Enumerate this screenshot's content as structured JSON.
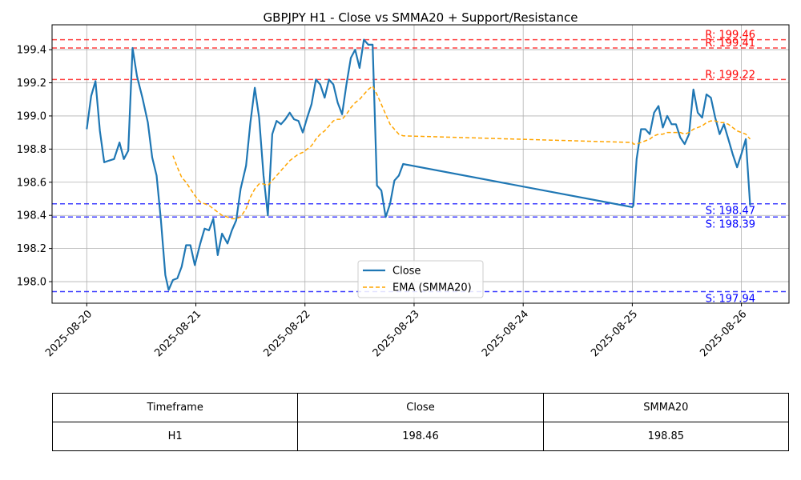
{
  "chart_data": {
    "type": "line",
    "title": "GBPJPY H1 - Close vs SMMA20 + Support/Resistance",
    "xlabel": "",
    "ylabel": "",
    "ylim": [
      197.87,
      199.55
    ],
    "yticks": [
      198.0,
      198.2,
      198.4,
      198.6,
      198.8,
      199.0,
      199.2,
      199.4
    ],
    "ytick_labels": [
      "198.0",
      "198.2",
      "198.4",
      "198.6",
      "198.8",
      "199.0",
      "199.2",
      "199.4"
    ],
    "xlim": [
      -0.318,
      6.436
    ],
    "xticks": [
      0,
      1,
      2,
      3,
      4,
      5,
      6
    ],
    "xtick_labels": [
      "2025-08-20",
      "2025-08-21",
      "2025-08-22",
      "2025-08-23",
      "2025-08-24",
      "2025-08-25",
      "2025-08-26"
    ],
    "grid": true,
    "legend_position": "lower center",
    "series": [
      {
        "name": "Close",
        "color": "#1f77b4",
        "style": "solid",
        "points": [
          [
            0.0,
            198.92
          ],
          [
            0.04,
            199.12
          ],
          [
            0.08,
            199.21
          ],
          [
            0.12,
            198.91
          ],
          [
            0.16,
            198.72
          ],
          [
            0.2,
            198.73
          ],
          [
            0.25,
            198.74
          ],
          [
            0.3,
            198.84
          ],
          [
            0.34,
            198.74
          ],
          [
            0.38,
            198.79
          ],
          [
            0.42,
            199.41
          ],
          [
            0.46,
            199.24
          ],
          [
            0.51,
            199.11
          ],
          [
            0.56,
            198.96
          ],
          [
            0.6,
            198.75
          ],
          [
            0.64,
            198.64
          ],
          [
            0.68,
            198.37
          ],
          [
            0.72,
            198.04
          ],
          [
            0.75,
            197.95
          ],
          [
            0.79,
            198.01
          ],
          [
            0.83,
            198.02
          ],
          [
            0.87,
            198.09
          ],
          [
            0.91,
            198.22
          ],
          [
            0.95,
            198.22
          ],
          [
            0.99,
            198.1
          ],
          [
            1.04,
            198.23
          ],
          [
            1.08,
            198.32
          ],
          [
            1.12,
            198.31
          ],
          [
            1.16,
            198.38
          ],
          [
            1.2,
            198.16
          ],
          [
            1.24,
            198.29
          ],
          [
            1.29,
            198.23
          ],
          [
            1.33,
            198.31
          ],
          [
            1.37,
            198.37
          ],
          [
            1.41,
            198.56
          ],
          [
            1.46,
            198.7
          ],
          [
            1.5,
            198.96
          ],
          [
            1.54,
            199.17
          ],
          [
            1.58,
            198.99
          ],
          [
            1.62,
            198.64
          ],
          [
            1.66,
            198.4
          ],
          [
            1.7,
            198.89
          ],
          [
            1.74,
            198.97
          ],
          [
            1.78,
            198.95
          ],
          [
            1.82,
            198.98
          ],
          [
            1.86,
            199.02
          ],
          [
            1.9,
            198.98
          ],
          [
            1.94,
            198.97
          ],
          [
            1.98,
            198.9
          ],
          [
            2.02,
            198.99
          ],
          [
            2.06,
            199.07
          ],
          [
            2.1,
            199.22
          ],
          [
            2.14,
            199.19
          ],
          [
            2.18,
            199.11
          ],
          [
            2.22,
            199.22
          ],
          [
            2.26,
            199.19
          ],
          [
            2.3,
            199.08
          ],
          [
            2.34,
            199.01
          ],
          [
            2.38,
            199.19
          ],
          [
            2.42,
            199.35
          ],
          [
            2.46,
            199.4
          ],
          [
            2.5,
            199.29
          ],
          [
            2.54,
            199.46
          ],
          [
            2.58,
            199.43
          ],
          [
            2.62,
            199.43
          ],
          [
            2.66,
            198.58
          ],
          [
            2.7,
            198.55
          ],
          [
            2.74,
            198.39
          ],
          [
            2.78,
            198.47
          ],
          [
            2.82,
            198.61
          ],
          [
            2.86,
            198.64
          ],
          [
            2.9,
            198.71
          ],
          [
            5.0,
            198.45
          ],
          [
            5.01,
            198.46
          ],
          [
            5.04,
            198.74
          ],
          [
            5.08,
            198.92
          ],
          [
            5.12,
            198.92
          ],
          [
            5.16,
            198.89
          ],
          [
            5.2,
            199.02
          ],
          [
            5.24,
            199.06
          ],
          [
            5.28,
            198.93
          ],
          [
            5.32,
            199.0
          ],
          [
            5.36,
            198.95
          ],
          [
            5.4,
            198.95
          ],
          [
            5.44,
            198.87
          ],
          [
            5.48,
            198.83
          ],
          [
            5.52,
            198.89
          ],
          [
            5.56,
            199.16
          ],
          [
            5.6,
            199.02
          ],
          [
            5.64,
            198.99
          ],
          [
            5.68,
            199.13
          ],
          [
            5.72,
            199.11
          ],
          [
            5.76,
            198.99
          ],
          [
            5.8,
            198.89
          ],
          [
            5.84,
            198.95
          ],
          [
            5.88,
            198.86
          ],
          [
            5.92,
            198.77
          ],
          [
            5.96,
            198.69
          ],
          [
            6.0,
            198.77
          ],
          [
            6.04,
            198.86
          ],
          [
            6.08,
            198.46
          ]
        ]
      },
      {
        "name": "EMA (SMMA20)",
        "color": "#ffa500",
        "style": "dashed",
        "points": [
          [
            0.79,
            198.76
          ],
          [
            0.83,
            198.69
          ],
          [
            0.87,
            198.63
          ],
          [
            0.91,
            198.6
          ],
          [
            0.95,
            198.56
          ],
          [
            0.99,
            198.52
          ],
          [
            1.04,
            198.48
          ],
          [
            1.08,
            198.47
          ],
          [
            1.12,
            198.46
          ],
          [
            1.16,
            198.44
          ],
          [
            1.2,
            198.42
          ],
          [
            1.24,
            198.4
          ],
          [
            1.29,
            198.39
          ],
          [
            1.33,
            198.38
          ],
          [
            1.37,
            198.38
          ],
          [
            1.41,
            198.39
          ],
          [
            1.46,
            198.44
          ],
          [
            1.5,
            198.51
          ],
          [
            1.54,
            198.56
          ],
          [
            1.58,
            198.59
          ],
          [
            1.62,
            198.59
          ],
          [
            1.66,
            198.58
          ],
          [
            1.7,
            198.61
          ],
          [
            1.74,
            198.64
          ],
          [
            1.78,
            198.67
          ],
          [
            1.82,
            198.7
          ],
          [
            1.86,
            198.73
          ],
          [
            1.9,
            198.75
          ],
          [
            1.94,
            198.77
          ],
          [
            1.98,
            198.78
          ],
          [
            2.02,
            198.8
          ],
          [
            2.06,
            198.82
          ],
          [
            2.1,
            198.86
          ],
          [
            2.14,
            198.89
          ],
          [
            2.18,
            198.91
          ],
          [
            2.22,
            198.94
          ],
          [
            2.26,
            198.97
          ],
          [
            2.3,
            198.98
          ],
          [
            2.34,
            198.98
          ],
          [
            2.38,
            199.01
          ],
          [
            2.42,
            199.05
          ],
          [
            2.46,
            199.08
          ],
          [
            2.5,
            199.1
          ],
          [
            2.54,
            199.13
          ],
          [
            2.58,
            199.16
          ],
          [
            2.62,
            199.18
          ],
          [
            2.66,
            199.13
          ],
          [
            2.7,
            199.07
          ],
          [
            2.74,
            199.01
          ],
          [
            2.78,
            198.95
          ],
          [
            2.82,
            198.92
          ],
          [
            2.86,
            198.89
          ],
          [
            2.9,
            198.88
          ],
          [
            5.0,
            198.84
          ],
          [
            5.01,
            198.83
          ],
          [
            5.04,
            198.83
          ],
          [
            5.08,
            198.84
          ],
          [
            5.12,
            198.85
          ],
          [
            5.16,
            198.86
          ],
          [
            5.2,
            198.88
          ],
          [
            5.24,
            198.89
          ],
          [
            5.28,
            198.89
          ],
          [
            5.32,
            198.9
          ],
          [
            5.36,
            198.9
          ],
          [
            5.4,
            198.9
          ],
          [
            5.44,
            198.9
          ],
          [
            5.48,
            198.89
          ],
          [
            5.52,
            198.9
          ],
          [
            5.56,
            198.92
          ],
          [
            5.6,
            198.93
          ],
          [
            5.64,
            198.94
          ],
          [
            5.68,
            198.96
          ],
          [
            5.72,
            198.97
          ],
          [
            5.76,
            198.97
          ],
          [
            5.8,
            198.96
          ],
          [
            5.84,
            198.96
          ],
          [
            5.88,
            198.95
          ],
          [
            5.92,
            198.93
          ],
          [
            5.96,
            198.91
          ],
          [
            6.0,
            198.9
          ],
          [
            6.04,
            198.89
          ],
          [
            6.08,
            198.86
          ]
        ]
      }
    ],
    "levels": [
      {
        "kind": "resistance",
        "value": 199.46,
        "label": "R: 199.46",
        "color": "#ff0000"
      },
      {
        "kind": "resistance",
        "value": 199.41,
        "label": "R: 199.41",
        "color": "#ff0000"
      },
      {
        "kind": "resistance",
        "value": 199.22,
        "label": "R: 199.22",
        "color": "#ff0000"
      },
      {
        "kind": "support",
        "value": 198.47,
        "label": "S: 198.47",
        "color": "#0000ff"
      },
      {
        "kind": "support",
        "value": 198.39,
        "label": "S: 198.39",
        "color": "#0000ff"
      },
      {
        "kind": "support",
        "value": 197.94,
        "label": "S: 197.94",
        "color": "#0000ff"
      }
    ]
  },
  "table": {
    "headers": [
      "Timeframe",
      "Close",
      "SMMA20"
    ],
    "rows": [
      [
        "H1",
        "198.46",
        "198.85"
      ]
    ]
  }
}
